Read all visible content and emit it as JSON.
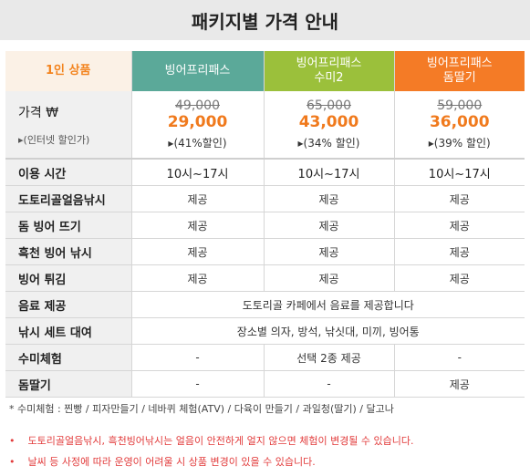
{
  "title": "패키지별 가격 안내",
  "header": {
    "product_label": "1인 상품",
    "packages": [
      "빙어프리패스",
      "빙어프리패스\n수미2",
      "빙어프리패스\n돔딸기"
    ]
  },
  "price": {
    "label": "가격 ₩",
    "sub": "▸(인터넷 할인가)",
    "items": [
      {
        "old": "49,000",
        "new": "29,000",
        "discount": "▸(41%할인)"
      },
      {
        "old": "65,000",
        "new": "43,000",
        "discount": "▸(34% 할인)"
      },
      {
        "old": "59,000",
        "new": "36,000",
        "discount": "▸(39% 할인)"
      }
    ]
  },
  "rows": [
    {
      "label": "이용 시간",
      "cells": [
        "10시~17시",
        "10시~17시",
        "10시~17시"
      ]
    },
    {
      "label": "도토리골얼음낚시",
      "cells": [
        "제공",
        "제공",
        "제공"
      ]
    },
    {
      "label": "돔 빙어 뜨기",
      "cells": [
        "제공",
        "제공",
        "제공"
      ]
    },
    {
      "label": "흑천 빙어 낚시",
      "cells": [
        "제공",
        "제공",
        "제공"
      ]
    },
    {
      "label": "빙어 튀김",
      "cells": [
        "제공",
        "제공",
        "제공"
      ]
    },
    {
      "label": "음료 제공",
      "merged": "도토리골 카페에서 음료를 제공합니다"
    },
    {
      "label": "낚시 세트 대여",
      "merged": "장소별 의자, 방석, 낚싯대, 미끼, 빙어통"
    },
    {
      "label": "수미체험",
      "cells": [
        "-",
        "선택 2종 제공",
        "-"
      ]
    },
    {
      "label": "돔딸기",
      "cells": [
        "-",
        "-",
        "제공"
      ]
    }
  ],
  "notes": "* 수미체험 :  찐빵 /  피자만들기 / 네바퀴 체험(ATV) / 다육이 만들기 / 과일청(딸기) / 달고나",
  "warnings": [
    {
      "bullet": "•",
      "text": "도토리골얼음낚시, 흑천빙어낚시는 얼음이 안전하게 얼지 않으면 체험이 변경될 수 있습니다."
    },
    {
      "bullet": "•",
      "text": "날씨 등 사정에 따라 운영이 어려울 시 상품 변경이 있을 수 있습니다."
    }
  ]
}
